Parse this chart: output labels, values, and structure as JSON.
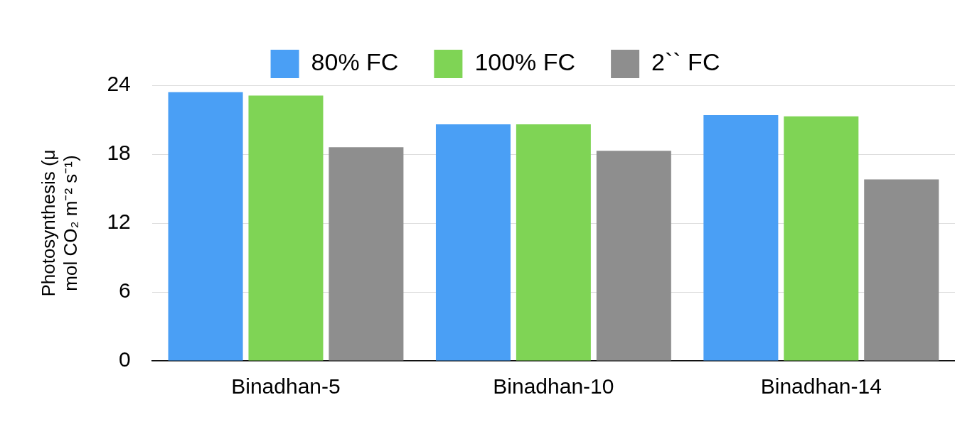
{
  "chart_data": {
    "type": "bar",
    "ylabel": "Photosynthesis (μ mol CO₂ m⁻² s⁻¹)",
    "categories": [
      "Binadhan-5",
      "Binadhan-10",
      "Binadhan-14"
    ],
    "series": [
      {
        "name": "80% FC",
        "color": "#4a9ff5",
        "values": [
          23.4,
          20.6,
          21.4
        ]
      },
      {
        "name": "100% FC",
        "color": "#7fd455",
        "values": [
          23.1,
          20.6,
          21.3
        ]
      },
      {
        "name": "2`` FC",
        "color": "#8e8e8e",
        "values": [
          18.6,
          18.3,
          15.8
        ]
      }
    ],
    "ylim": [
      0,
      24
    ],
    "yticks": [
      0,
      6,
      12,
      18,
      24
    ],
    "grid": "y",
    "legend": "top"
  }
}
